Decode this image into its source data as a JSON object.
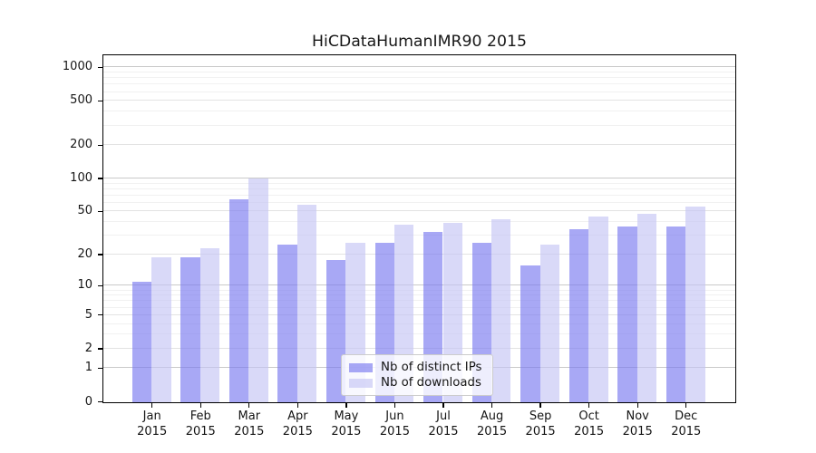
{
  "chart_data": {
    "type": "bar",
    "title": "HiCDataHumanIMR90 2015",
    "categories": [
      "Jan",
      "Feb",
      "Mar",
      "Apr",
      "May",
      "Jun",
      "Jul",
      "Aug",
      "Sep",
      "Oct",
      "Nov",
      "Dec"
    ],
    "x_year": "2015",
    "series": [
      {
        "name": "Nb of distinct IPs",
        "color_hex": "#a9a9f0",
        "fill_rgba": "rgba(121,121,240,0.65)",
        "values": [
          11,
          19,
          65,
          25,
          18,
          26,
          33,
          26,
          16,
          35,
          37,
          37
        ]
      },
      {
        "name": "Nb of downloads",
        "color_hex": "#d9d9f8",
        "fill_rgba": "rgba(196,196,244,0.65)",
        "values": [
          19,
          23,
          100,
          58,
          26,
          38,
          40,
          43,
          25,
          45,
          48,
          56
        ]
      }
    ],
    "yscale": "log1p",
    "yticks": [
      0,
      1,
      2,
      5,
      10,
      20,
      50,
      100,
      200,
      500,
      1000
    ],
    "yticks_minor": [
      3,
      4,
      6,
      7,
      8,
      9,
      30,
      40,
      60,
      70,
      80,
      90,
      300,
      400,
      600,
      700,
      800,
      900
    ],
    "ylim": [
      0,
      1290
    ],
    "grid": true,
    "legend_position": "lower center",
    "axis_color": "#000000",
    "grid_color_major": "#c9c9c9",
    "grid_color_mid": "#e3e3e3",
    "grid_color_minor": "#f1f1f1"
  }
}
